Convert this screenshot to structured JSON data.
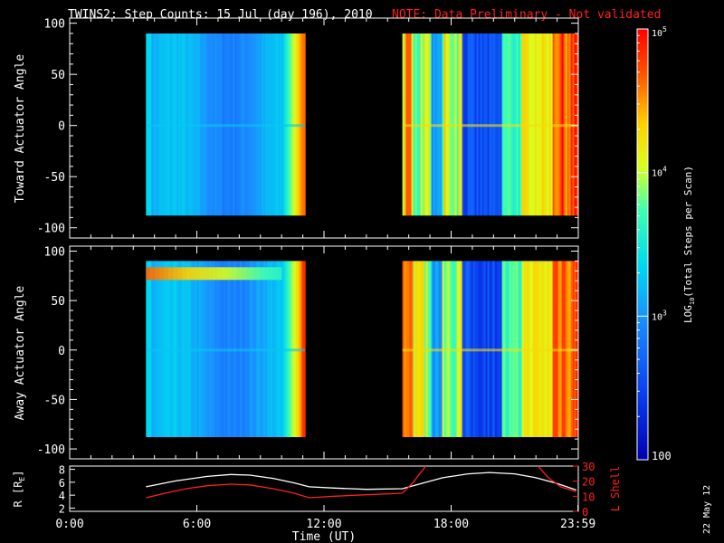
{
  "title": "TWINS2: Step Counts: 15 Jul (day 196), 2010",
  "note": "NOTE: Data Preliminary - Not validated",
  "date_stamp": "22 May 12",
  "colors": {
    "background": "#000000",
    "axis": "#ffffff",
    "note": "#ff0000",
    "r_line": "#ffffff",
    "l_line": "#ff2020"
  },
  "chart_data": [
    {
      "type": "heatmap",
      "panel": "toward",
      "ylabel": "Toward Actuator Angle",
      "ylim": [
        -110,
        105
      ],
      "yticks": [
        100,
        50,
        0,
        -50,
        -100
      ],
      "xlim": [
        0,
        24
      ],
      "data_y_range": [
        -88,
        90
      ],
      "segments": [
        {
          "start_hour": 3.6,
          "end_hour": 11.1,
          "level": 2.85
        },
        {
          "start_hour": 15.7,
          "end_hour": 23.95,
          "level": 3.9
        }
      ]
    },
    {
      "type": "heatmap",
      "panel": "away",
      "ylabel": "Away Actuator Angle",
      "ylim": [
        -110,
        105
      ],
      "yticks": [
        100,
        50,
        0,
        -50,
        -100
      ],
      "xlim": [
        0,
        24
      ],
      "data_y_range": [
        -88,
        90
      ],
      "segments": [
        {
          "start_hour": 3.6,
          "end_hour": 11.1,
          "level": 2.85
        },
        {
          "start_hour": 15.7,
          "end_hour": 23.95,
          "level": 3.9
        }
      ]
    },
    {
      "type": "line",
      "panel": "orbit",
      "xlabel": "Time (UT)",
      "xticks": [
        0,
        6,
        12,
        18,
        23.983
      ],
      "xtick_labels": [
        "0:00",
        "6:00",
        "12:00",
        "18:00",
        "23:59"
      ],
      "left_axis": {
        "label": "R [RE]",
        "label_main": "R [R",
        "label_sub": "E",
        "label_end": "]",
        "ylim": [
          1.5,
          8.5
        ],
        "ticks": [
          8,
          6,
          4,
          2
        ]
      },
      "right_axis": {
        "label": "L Shell",
        "ylim": [
          0,
          30
        ],
        "ticks": [
          30,
          20,
          10,
          0
        ],
        "tick_labels": [
          "30",
          "20",
          "10",
          "0"
        ]
      },
      "series": [
        {
          "name": "R",
          "axis": "left",
          "x": [
            3.6,
            5,
            6.5,
            7.6,
            8.5,
            9.6,
            10.6,
            11.3,
            12.5,
            14,
            15.7,
            16.6,
            17.6,
            18.8,
            19.8,
            21,
            22,
            23.0,
            23.9
          ],
          "y": [
            5.3,
            6.2,
            6.9,
            7.2,
            7.1,
            6.6,
            5.9,
            5.3,
            5.1,
            4.9,
            5.0,
            5.8,
            6.7,
            7.3,
            7.5,
            7.3,
            6.7,
            5.8,
            4.8
          ]
        },
        {
          "name": "L",
          "axis": "right",
          "x": [
            3.6,
            4.5,
            5.5,
            6.5,
            7.6,
            8.5,
            9.6,
            10.6,
            11.3,
            12.5,
            14,
            15.7,
            16.2,
            16.8
          ],
          "y": [
            9,
            12,
            15,
            17,
            18,
            17.5,
            15,
            12,
            9,
            10,
            11,
            12,
            19,
            30
          ]
        },
        {
          "name": "L",
          "axis": "right",
          "x": [
            22.1,
            22.6,
            23.2,
            23.9
          ],
          "y": [
            30,
            22,
            16,
            13
          ]
        }
      ]
    },
    {
      "type": "colorbar",
      "label": "LOG10(Total Steps per Scan)",
      "label_main": "LOG",
      "label_sub": "10",
      "label_rest": "(Total Steps per Scan)",
      "range_log10": [
        2,
        5
      ],
      "ticks": [
        {
          "value": 5,
          "base": "10",
          "exp": "5"
        },
        {
          "value": 4,
          "base": "10",
          "exp": "4"
        },
        {
          "value": 3,
          "base": "10",
          "exp": "3"
        },
        {
          "value": 2,
          "base": "100",
          "exp": ""
        }
      ]
    }
  ]
}
